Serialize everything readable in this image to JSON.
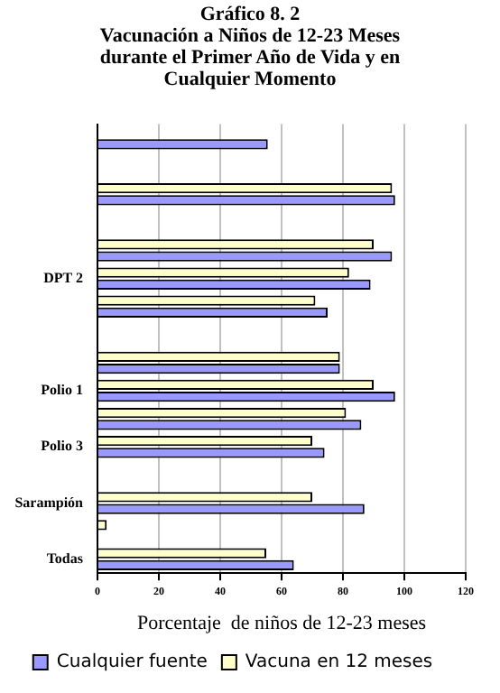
{
  "chart_data": {
    "type": "bar",
    "orientation": "horizontal",
    "title": "Gráfico 8. 2",
    "subtitle": "Vacunación a Niños de 12-23 Meses durante el Primer Año de Vida y en Cualquier Momento",
    "xlabel": "Porcentaje  de niños de 12-23 meses",
    "categories": [
      null,
      null,
      null,
      null,
      null,
      "DPT 2",
      null,
      null,
      null,
      "Polio 1",
      null,
      "Polio 3",
      null,
      "Sarampión",
      null,
      "Todas"
    ],
    "series": [
      {
        "name": "Cualquier fuente",
        "color": "#9999ff",
        "values": [
          55.5,
          null,
          97,
          null,
          96,
          89,
          75,
          null,
          79,
          97,
          86,
          74,
          null,
          87,
          null,
          64
        ]
      },
      {
        "name": "Vacuna en 12 meses",
        "color": "#ffffcc",
        "values": [
          null,
          null,
          96,
          null,
          90,
          82,
          71,
          null,
          79,
          90,
          81,
          70,
          null,
          70,
          3,
          55
        ]
      }
    ],
    "xlim": [
      0,
      120
    ],
    "xticks": [
      0,
      20,
      40,
      60,
      80,
      100,
      120
    ],
    "grid": "x",
    "legend": "bottom"
  }
}
